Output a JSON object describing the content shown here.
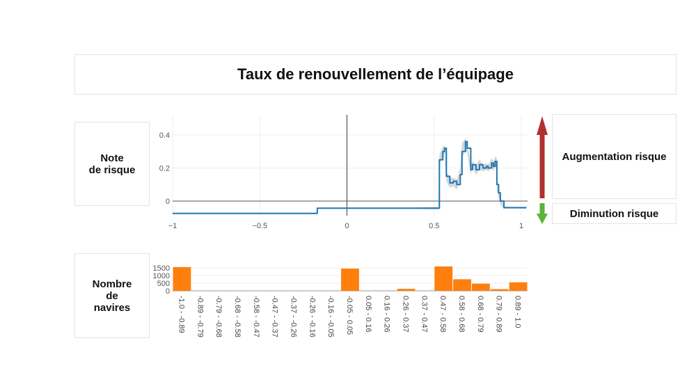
{
  "title": "Taux de renouvellement de l’équipage",
  "labels": {
    "note": "Note\nde risque",
    "ships": "Nombre\nde\nnavires",
    "up": "Augmentation risque",
    "down": "Diminution risque"
  },
  "colors": {
    "line": "#1f77b4",
    "band": "#cccccc",
    "bars": "#ff7f0e",
    "up_arrow": "#b03030",
    "down_arrow": "#5db33a"
  },
  "chart_data": [
    {
      "type": "line",
      "xlim": [
        -1,
        1.03
      ],
      "ylim": [
        -0.08,
        0.5
      ],
      "x_ticks": [
        -1,
        -0.5,
        0,
        0.5,
        1
      ],
      "x_tick_labels": [
        "−1",
        "−0.5",
        "0",
        "0.5",
        "1"
      ],
      "y_ticks": [
        0,
        0.2,
        0.4
      ],
      "y_tick_labels": [
        "0",
        "0.2",
        "0.4"
      ],
      "grid": true,
      "series": [
        {
          "x": [
            -1,
            -0.17,
            -0.17,
            0.28,
            0.5,
            0.52,
            0.53,
            0.53,
            0.55,
            0.56,
            0.57,
            0.59,
            0.61,
            0.63,
            0.65,
            0.66,
            0.68,
            0.69,
            0.71,
            0.72,
            0.74,
            0.76,
            0.78,
            0.8,
            0.81,
            0.83,
            0.84,
            0.85,
            0.86,
            0.86,
            0.87,
            0.88,
            0.9,
            0.93,
            1.03
          ],
          "y": [
            -0.075,
            -0.075,
            -0.043,
            -0.043,
            -0.043,
            -0.043,
            0.1,
            0.25,
            0.3,
            0.32,
            0.15,
            0.11,
            0.12,
            0.1,
            0.16,
            0.3,
            0.36,
            0.32,
            0.19,
            0.22,
            0.19,
            0.22,
            0.2,
            0.21,
            0.2,
            0.23,
            0.21,
            0.24,
            0.21,
            0.1,
            0.05,
            0.0,
            -0.04,
            -0.04,
            -0.04
          ]
        }
      ],
      "band_upper": [
        -0.075,
        -0.075,
        -0.043,
        -0.043,
        -0.035,
        -0.035,
        0.13,
        0.28,
        0.33,
        0.34,
        0.18,
        0.14,
        0.14,
        0.13,
        0.2,
        0.35,
        0.38,
        0.35,
        0.22,
        0.24,
        0.22,
        0.25,
        0.22,
        0.23,
        0.22,
        0.26,
        0.24,
        0.27,
        0.26,
        0.15,
        0.09,
        0.02,
        -0.03,
        -0.035,
        -0.035
      ],
      "band_lower": [
        -0.075,
        -0.075,
        -0.043,
        -0.043,
        -0.05,
        -0.05,
        0.07,
        0.22,
        0.27,
        0.29,
        0.12,
        0.08,
        0.09,
        0.07,
        0.12,
        0.25,
        0.32,
        0.29,
        0.16,
        0.2,
        0.16,
        0.19,
        0.18,
        0.19,
        0.18,
        0.2,
        0.18,
        0.21,
        0.17,
        0.06,
        0.02,
        -0.02,
        -0.045,
        -0.045,
        -0.045
      ]
    },
    {
      "type": "bar",
      "categories": [
        "-1.0 - -0.89",
        "-0.89 - -0.79",
        "-0.79 - -0.68",
        "-0.68 - -0.58",
        "-0.58 - -0.47",
        "-0.47 - -0.37",
        "-0.37 - -0.26",
        "-0.26 - -0.16",
        "-0.16 - -0.05",
        "-0.05 - 0.05",
        "0.05 - 0.16",
        "0.16 - 0.26",
        "0.26 - 0.37",
        "0.37 - 0.47",
        "0.47 - 0.58",
        "0.58 - 0.68",
        "0.68 - 0.79",
        "0.79 - 0.89",
        "0.89 - 1.0"
      ],
      "values": [
        1560,
        0,
        0,
        0,
        0,
        0,
        0,
        0,
        0,
        1460,
        0,
        0,
        130,
        0,
        1600,
        760,
        470,
        110,
        560
      ],
      "ylim": [
        0,
        1600
      ],
      "y_ticks": [
        0,
        500,
        1000,
        1500
      ],
      "y_tick_labels": [
        "0",
        "500",
        "1000",
        "1500"
      ]
    }
  ]
}
